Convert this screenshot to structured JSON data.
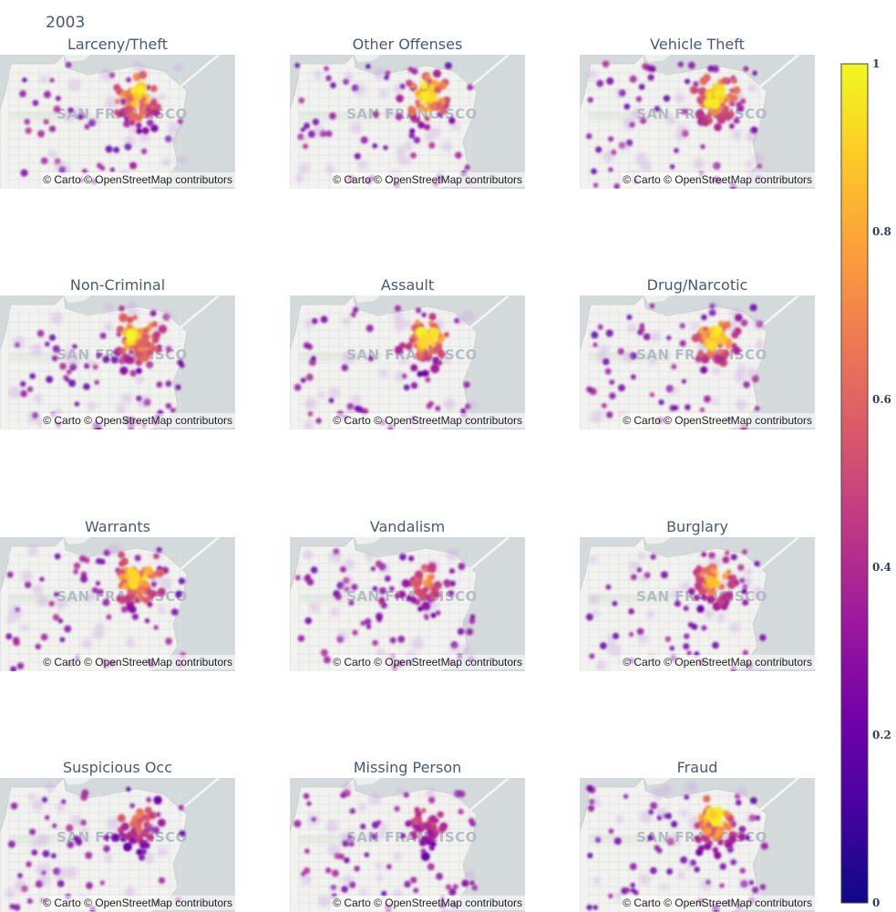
{
  "figure": {
    "title": "2003"
  },
  "attribution": "© Carto © OpenStreetMap contributors",
  "map_label": "SAN FRANCISCO",
  "colorscale": [
    "#0d0887",
    "#46039f",
    "#7201a8",
    "#9c179e",
    "#bd3786",
    "#d8576b",
    "#ed7953",
    "#fb9f3a",
    "#fdca26",
    "#f0f921"
  ],
  "chart_data": {
    "type": "heatmap",
    "subtype": "density_mapbox",
    "map_region": "San Francisco",
    "colorbar": {
      "range": [
        0,
        1
      ],
      "ticks": [
        0,
        0.2,
        0.4,
        0.6,
        0.8,
        1
      ],
      "tick_labels": [
        "0",
        "0.2",
        "0.4",
        "0.6",
        "0.8",
        "1"
      ]
    },
    "panels": [
      {
        "title": "Larceny/Theft",
        "peak_density": 1.0
      },
      {
        "title": "Other Offenses",
        "peak_density": 1.0
      },
      {
        "title": "Vehicle Theft",
        "peak_density": 1.0
      },
      {
        "title": "Non-Criminal",
        "peak_density": 1.0
      },
      {
        "title": "Assault",
        "peak_density": 1.0
      },
      {
        "title": "Drug/Narcotic",
        "peak_density": 1.0
      },
      {
        "title": "Warrants",
        "peak_density": 1.0
      },
      {
        "title": "Vandalism",
        "peak_density": 0.75
      },
      {
        "title": "Burglary",
        "peak_density": 0.9
      },
      {
        "title": "Suspicious Occ",
        "peak_density": 0.7
      },
      {
        "title": "Missing Person",
        "peak_density": 0.6
      },
      {
        "title": "Fraud",
        "peak_density": 1.0
      }
    ]
  }
}
